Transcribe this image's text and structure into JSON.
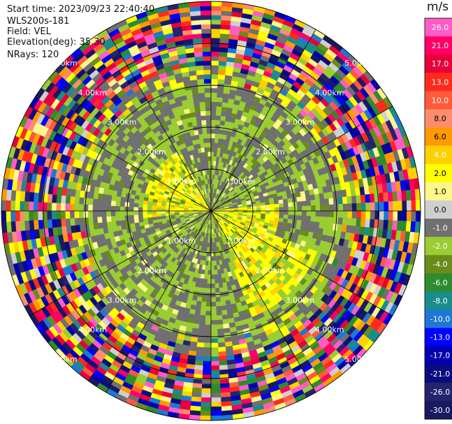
{
  "header": {
    "start_time": "Start time: 2023/09/23 22:40:40",
    "instrument": "WLS200s-181",
    "field": "Field: VEL",
    "elevation": "Elevation(deg): 35.30",
    "nrays": "NRays: 120"
  },
  "chart_data": {
    "type": "heatmap",
    "subtype": "polar-ppi",
    "field": "VEL",
    "nrays": 120,
    "range_ring_labels": [
      "1.00km",
      "2.00km",
      "3.00km",
      "4.00km",
      "5.00km"
    ],
    "colorbar": {
      "unit": "m/s",
      "ticks": [
        "26.0",
        "21.0",
        "17.0",
        "13.0",
        "10.0",
        "8.0",
        "6.0",
        "4.0",
        "2.0",
        "1.0",
        "0.0",
        "-1.0",
        "-2.0",
        "-4.0",
        "-6.0",
        "-8.0",
        "-10.0",
        "-13.0",
        "-17.0",
        "-21.0",
        "-26.0",
        "-30.0"
      ],
      "colors": [
        "#ff5cc8",
        "#ff0066",
        "#e8003a",
        "#ff2a1e",
        "#ff5a3a",
        "#ff8c6e",
        "#ff9a00",
        "#ffd000",
        "#ffff00",
        "#fff78a",
        "#cfcfcf",
        "#707070",
        "#9acd32",
        "#6a8c1a",
        "#2e8b2e",
        "#1a8c8c",
        "#1f77d4",
        "#0000ff",
        "#0000b0",
        "#0b0b80",
        "#24246e",
        "#191960"
      ]
    }
  }
}
